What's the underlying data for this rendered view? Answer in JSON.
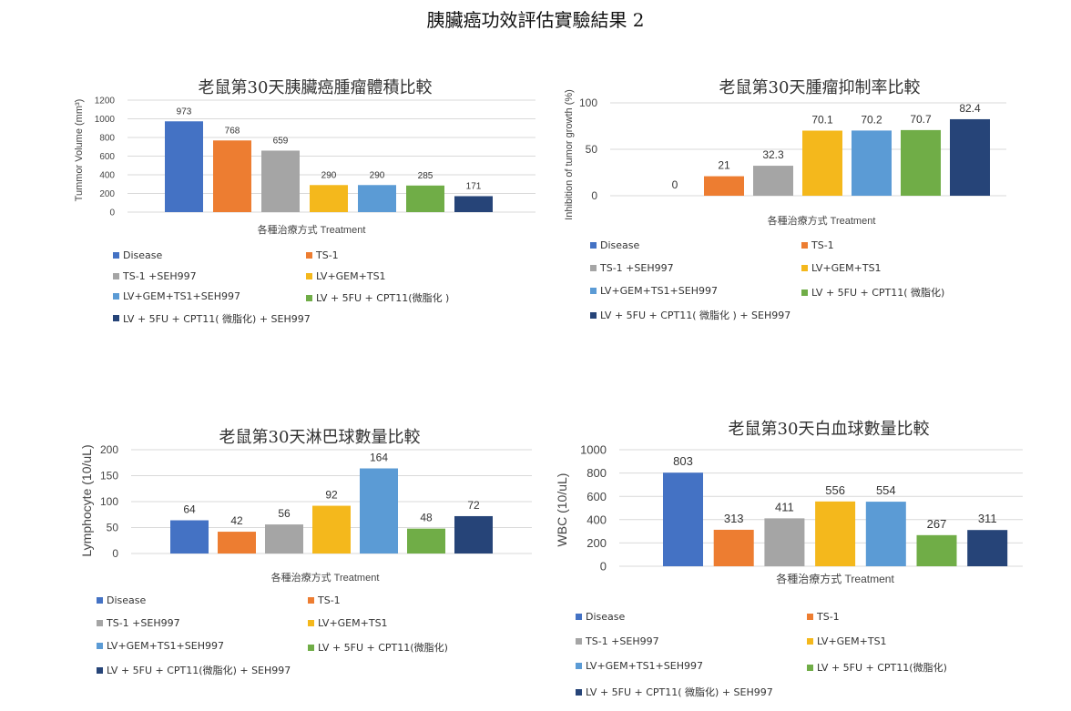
{
  "page": {
    "title": "胰臟癌功效評估實驗結果 2"
  },
  "colors": {
    "Disease": "#4472c4",
    "TS-1": "#ed7d31",
    "TS-1 +SEH997": "#a5a5a5",
    "LV+GEM+TS1": "#f4b81c",
    "LV+GEM+TS1+SEH997": "#5b9bd5",
    "LV + 5FU + CPT11": "#70ad47",
    "LV + 5FU + CPT11 + SEH997": "#264478",
    "gridline": "#d9d9d9"
  },
  "chart_data": [
    {
      "type": "bar",
      "title": "老鼠第30天胰臟癌腫瘤體積比較",
      "xlabel": "各種治療方式 Treatment",
      "ylabel": "Tummor Volume (mm³)",
      "ylim": [
        0,
        1200
      ],
      "yticks": [
        0,
        200,
        400,
        600,
        800,
        1000,
        1200
      ],
      "grid": true,
      "legend_position": "bottom",
      "series": [
        {
          "name": "Disease",
          "values": [
            973
          ]
        },
        {
          "name": "TS-1",
          "values": [
            768
          ]
        },
        {
          "name": "TS-1 +SEH997",
          "values": [
            659
          ]
        },
        {
          "name": "LV+GEM+TS1",
          "values": [
            290
          ]
        },
        {
          "name": "LV+GEM+TS1+SEH997",
          "values": [
            290
          ]
        },
        {
          "name": "LV + 5FU + CPT11(微脂化 )",
          "values": [
            285
          ]
        },
        {
          "name": "LV + 5FU + CPT11( 微脂化) + SEH997",
          "values": [
            171
          ]
        }
      ]
    },
    {
      "type": "bar",
      "title": "老鼠第30天腫瘤抑制率比較",
      "xlabel": "各種治療方式 Treatment",
      "ylabel": "Inhibition of tumor growth (%)",
      "ylim": [
        0,
        100
      ],
      "yticks": [
        0,
        50,
        100
      ],
      "grid": true,
      "legend_position": "bottom",
      "series": [
        {
          "name": "Disease",
          "values": [
            0
          ]
        },
        {
          "name": "TS-1",
          "values": [
            21
          ]
        },
        {
          "name": "TS-1 +SEH997",
          "values": [
            32.3
          ]
        },
        {
          "name": "LV+GEM+TS1",
          "values": [
            70.1
          ]
        },
        {
          "name": "LV+GEM+TS1+SEH997",
          "values": [
            70.2
          ]
        },
        {
          "name": "LV + 5FU + CPT11( 微脂化)",
          "values": [
            70.7
          ]
        },
        {
          "name": "LV + 5FU + CPT11( 微脂化 ) + SEH997",
          "values": [
            82.4
          ]
        }
      ]
    },
    {
      "type": "bar",
      "title": "老鼠第30天淋巴球數量比較",
      "xlabel": "各種治療方式 Treatment",
      "ylabel": "Lymphocyte (10/uL)",
      "ylim": [
        0,
        200
      ],
      "yticks": [
        0,
        50,
        100,
        150,
        200
      ],
      "grid": true,
      "legend_position": "bottom",
      "series": [
        {
          "name": "Disease",
          "values": [
            64
          ]
        },
        {
          "name": "TS-1",
          "values": [
            42
          ]
        },
        {
          "name": "TS-1 +SEH997",
          "values": [
            56
          ]
        },
        {
          "name": "LV+GEM+TS1",
          "values": [
            92
          ]
        },
        {
          "name": "LV+GEM+TS1+SEH997",
          "values": [
            164
          ]
        },
        {
          "name": "LV + 5FU + CPT11(微脂化)",
          "values": [
            48
          ]
        },
        {
          "name": "LV + 5FU + CPT11(微脂化) + SEH997",
          "values": [
            72
          ]
        }
      ]
    },
    {
      "type": "bar",
      "title": "老鼠第30天白血球數量比較",
      "xlabel": "各種治療方式 Treatment",
      "ylabel": "WBC (10/uL)",
      "ylim": [
        0,
        1000
      ],
      "yticks": [
        0,
        200,
        400,
        600,
        800,
        1000
      ],
      "grid": true,
      "legend_position": "bottom",
      "series": [
        {
          "name": "Disease",
          "values": [
            803
          ]
        },
        {
          "name": "TS-1",
          "values": [
            313
          ]
        },
        {
          "name": "TS-1 +SEH997",
          "values": [
            411
          ]
        },
        {
          "name": "LV+GEM+TS1",
          "values": [
            556
          ]
        },
        {
          "name": "LV+GEM+TS1+SEH997",
          "values": [
            554
          ]
        },
        {
          "name": "LV + 5FU + CPT11(微脂化)",
          "values": [
            267
          ]
        },
        {
          "name": "LV + 5FU + CPT11( 微脂化) + SEH997",
          "values": [
            311
          ]
        }
      ]
    }
  ]
}
